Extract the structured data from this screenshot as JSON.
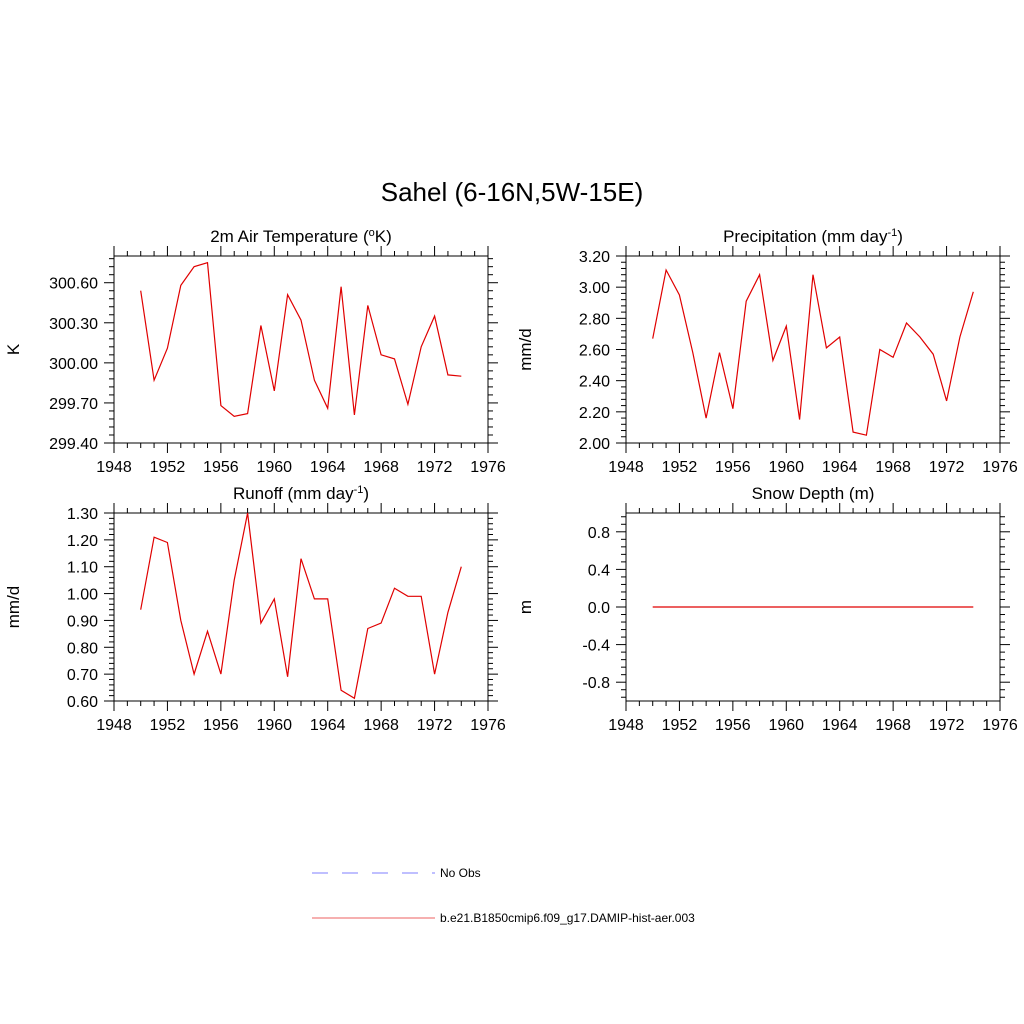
{
  "figure": {
    "title": "Sahel (6-16N,5W-15E)"
  },
  "colors": {
    "model_series": "#e00000",
    "obs_series": "#9999ff",
    "axis": "#000000"
  },
  "legend": {
    "items": [
      {
        "label": "No Obs",
        "style": "dashed",
        "color": "#9999ff"
      },
      {
        "label": "b.e21.B1850cmip6.f09_g17.DAMIP-hist-aer.003",
        "style": "solid",
        "color": "#f08080"
      }
    ]
  },
  "chart_data": [
    {
      "type": "line",
      "title_main": "2m Air Temperature (",
      "title_sup": "o",
      "title_end": "K)",
      "ylabel": "K",
      "xlim": [
        1948,
        1976
      ],
      "ylim": [
        299.4,
        300.8
      ],
      "x_ticks": [
        1948,
        1952,
        1956,
        1960,
        1964,
        1968,
        1972,
        1976
      ],
      "y_ticks": [
        299.4,
        299.7,
        300.0,
        300.3,
        300.6
      ],
      "y_tick_labels": [
        "299.40",
        "299.70",
        "300.00",
        "300.30",
        "300.60"
      ],
      "series": [
        {
          "x": [
            1950,
            1951,
            1952,
            1953,
            1954,
            1955,
            1956,
            1957,
            1958,
            1959,
            1960,
            1961,
            1962,
            1963,
            1964,
            1965,
            1966,
            1967,
            1968,
            1969,
            1970,
            1971,
            1972,
            1973,
            1974
          ],
          "values": [
            300.54,
            299.87,
            300.11,
            300.58,
            300.72,
            300.75,
            299.68,
            299.6,
            299.62,
            300.28,
            299.79,
            300.51,
            300.32,
            299.87,
            299.66,
            300.57,
            299.61,
            300.43,
            300.06,
            300.03,
            299.69,
            300.12,
            300.35,
            299.91,
            299.9
          ]
        }
      ]
    },
    {
      "type": "line",
      "title_main": "Precipitation (mm day",
      "title_sup": "-1",
      "title_end": ")",
      "ylabel": "mm/d",
      "xlim": [
        1948,
        1976
      ],
      "ylim": [
        2.0,
        3.2
      ],
      "x_ticks": [
        1948,
        1952,
        1956,
        1960,
        1964,
        1968,
        1972,
        1976
      ],
      "y_ticks": [
        2.0,
        2.2,
        2.4,
        2.6,
        2.8,
        3.0,
        3.2
      ],
      "y_tick_labels": [
        "2.00",
        "2.20",
        "2.40",
        "2.60",
        "2.80",
        "3.00",
        "3.20"
      ],
      "series": [
        {
          "x": [
            1950,
            1951,
            1952,
            1953,
            1954,
            1955,
            1956,
            1957,
            1958,
            1959,
            1960,
            1961,
            1962,
            1963,
            1964,
            1965,
            1966,
            1967,
            1968,
            1969,
            1970,
            1971,
            1972,
            1973,
            1974
          ],
          "values": [
            2.67,
            3.11,
            2.95,
            2.58,
            2.16,
            2.58,
            2.22,
            2.91,
            3.08,
            2.53,
            2.75,
            2.15,
            3.08,
            2.61,
            2.68,
            2.07,
            2.05,
            2.6,
            2.55,
            2.77,
            2.68,
            2.57,
            2.27,
            2.68,
            2.97
          ]
        }
      ]
    },
    {
      "type": "line",
      "title_main": "Runoff (mm day",
      "title_sup": "-1",
      "title_end": ")",
      "ylabel": "mm/d",
      "xlim": [
        1948,
        1976
      ],
      "ylim": [
        0.6,
        1.3
      ],
      "x_ticks": [
        1948,
        1952,
        1956,
        1960,
        1964,
        1968,
        1972,
        1976
      ],
      "y_ticks": [
        0.6,
        0.7,
        0.8,
        0.9,
        1.0,
        1.1,
        1.2,
        1.3
      ],
      "y_tick_labels": [
        "0.60",
        "0.70",
        "0.80",
        "0.90",
        "1.00",
        "1.10",
        "1.20",
        "1.30"
      ],
      "series": [
        {
          "x": [
            1950,
            1951,
            1952,
            1953,
            1954,
            1955,
            1956,
            1957,
            1958,
            1959,
            1960,
            1961,
            1962,
            1963,
            1964,
            1965,
            1966,
            1967,
            1968,
            1969,
            1970,
            1971,
            1972,
            1973,
            1974
          ],
          "values": [
            0.94,
            1.21,
            1.19,
            0.9,
            0.7,
            0.86,
            0.7,
            1.05,
            1.3,
            0.89,
            0.98,
            0.69,
            1.13,
            0.98,
            0.98,
            0.64,
            0.61,
            0.87,
            0.89,
            1.02,
            0.99,
            0.99,
            0.7,
            0.93,
            1.1
          ]
        }
      ]
    },
    {
      "type": "line",
      "title_main": "Snow Depth (m)",
      "title_sup": "",
      "title_end": "",
      "ylabel": "m",
      "xlim": [
        1948,
        1976
      ],
      "ylim": [
        -1.0,
        1.0
      ],
      "x_ticks": [
        1948,
        1952,
        1956,
        1960,
        1964,
        1968,
        1972,
        1976
      ],
      "y_ticks": [
        -0.8,
        -0.4,
        0.0,
        0.4,
        0.8
      ],
      "y_tick_labels": [
        "-0.8",
        "-0.4",
        "0.0",
        "0.4",
        "0.8"
      ],
      "series": [
        {
          "x": [
            1950,
            1951,
            1952,
            1953,
            1954,
            1955,
            1956,
            1957,
            1958,
            1959,
            1960,
            1961,
            1962,
            1963,
            1964,
            1965,
            1966,
            1967,
            1968,
            1969,
            1970,
            1971,
            1972,
            1973,
            1974
          ],
          "values": [
            0,
            0,
            0,
            0,
            0,
            0,
            0,
            0,
            0,
            0,
            0,
            0,
            0,
            0,
            0,
            0,
            0,
            0,
            0,
            0,
            0,
            0,
            0,
            0,
            0
          ]
        }
      ]
    }
  ]
}
